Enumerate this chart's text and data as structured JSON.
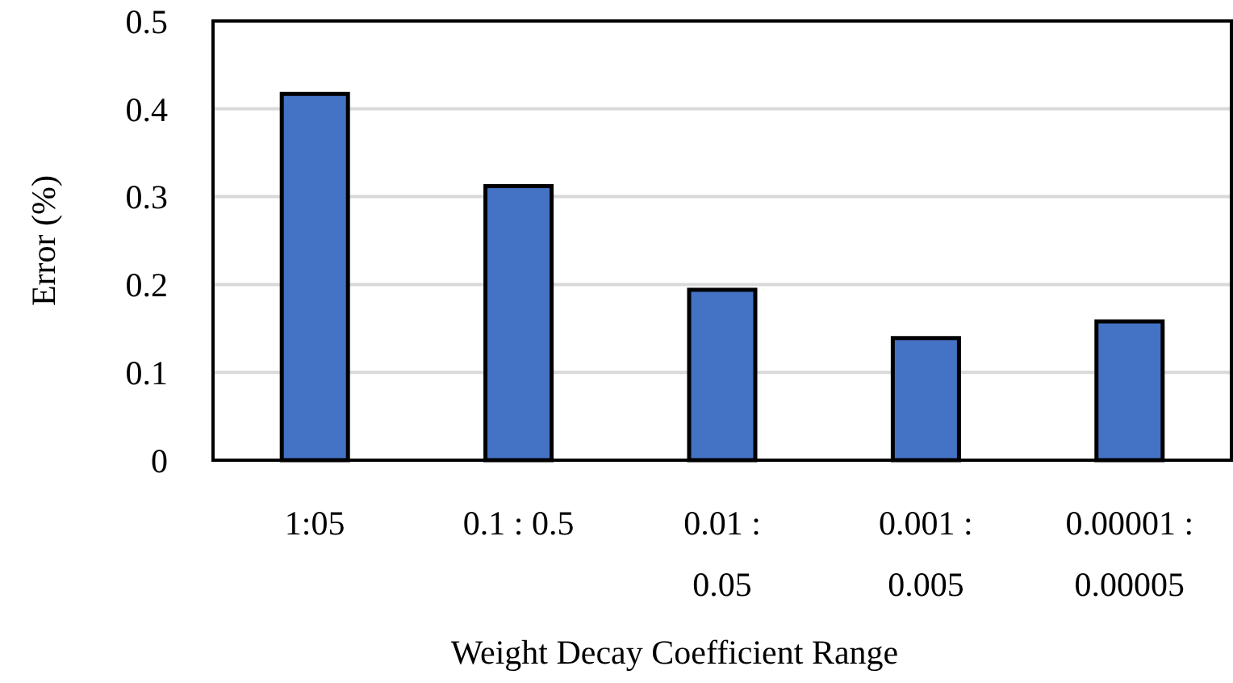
{
  "chart_data": {
    "type": "bar",
    "xlabel": "Weight Decay Coefficient Range",
    "ylabel": "Error (%)",
    "categories": [
      "1:05",
      "0.1 : 0.5",
      "0.01 : 0.05",
      "0.001 : 0.005",
      "0.00001 : 0.00005"
    ],
    "values": [
      0.417,
      0.312,
      0.194,
      0.139,
      0.158
    ],
    "color": "#4472c4",
    "ylim": [
      0,
      0.5
    ],
    "yticks": [
      0,
      0.1,
      0.2,
      0.3,
      0.4,
      0.5
    ],
    "grid": "y"
  }
}
